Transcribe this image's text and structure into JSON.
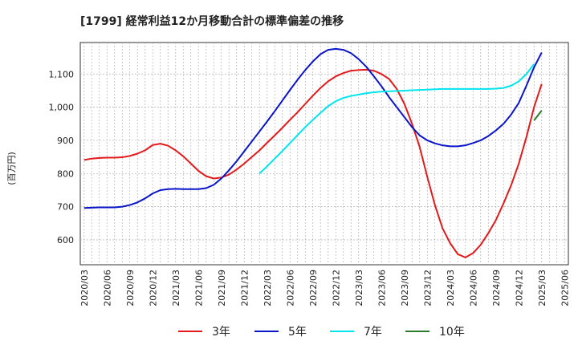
{
  "chart_data": {
    "type": "line",
    "title": "[1799]  経常利益12か月移動合計の標準偏差の推移",
    "ylabel": "(百万円)",
    "xlabel": "",
    "ylim": [
      525,
      1195
    ],
    "yticks": [
      600,
      700,
      800,
      900,
      "1,000",
      "1,100"
    ],
    "ytick_values": [
      600,
      700,
      800,
      900,
      1000,
      1100
    ],
    "x": [
      "2020/03",
      "2020/04",
      "2020/05",
      "2020/06",
      "2020/07",
      "2020/08",
      "2020/09",
      "2020/10",
      "2020/11",
      "2020/12",
      "2021/01",
      "2021/02",
      "2021/03",
      "2021/04",
      "2021/05",
      "2021/06",
      "2021/07",
      "2021/08",
      "2021/09",
      "2021/10",
      "2021/11",
      "2021/12",
      "2022/01",
      "2022/02",
      "2022/03",
      "2022/04",
      "2022/05",
      "2022/06",
      "2022/07",
      "2022/08",
      "2022/09",
      "2022/10",
      "2022/11",
      "2022/12",
      "2023/01",
      "2023/02",
      "2023/03",
      "2023/04",
      "2023/05",
      "2023/06",
      "2023/07",
      "2023/08",
      "2023/09",
      "2023/10",
      "2023/11",
      "2023/12",
      "2024/01",
      "2024/02",
      "2024/03",
      "2024/04",
      "2024/05",
      "2024/06",
      "2024/07",
      "2024/08",
      "2024/09",
      "2024/10",
      "2024/11",
      "2024/12",
      "2025/01",
      "2025/02",
      "2025/03",
      "2025/04",
      "2025/05",
      "2025/06"
    ],
    "xticks": [
      "2020/03",
      "2020/06",
      "2020/09",
      "2020/12",
      "2021/03",
      "2021/06",
      "2021/09",
      "2021/12",
      "2022/03",
      "2022/06",
      "2022/09",
      "2022/12",
      "2023/03",
      "2023/06",
      "2023/09",
      "2023/12",
      "2024/03",
      "2024/06",
      "2024/09",
      "2024/12",
      "2025/03",
      "2025/06"
    ],
    "grid": true,
    "legend": "bottom",
    "series": [
      {
        "name": "3年",
        "color": "#e31a1c",
        "values": [
          841,
          845,
          847,
          848,
          848,
          849,
          853,
          860,
          870,
          886,
          890,
          884,
          870,
          852,
          830,
          808,
          792,
          785,
          788,
          797,
          812,
          830,
          850,
          870,
          893,
          915,
          938,
          962,
          985,
          1010,
          1035,
          1058,
          1078,
          1093,
          1103,
          1110,
          1112,
          1113,
          1110,
          1100,
          1085,
          1055,
          1010,
          950,
          880,
          790,
          705,
          635,
          590,
          557,
          547,
          560,
          585,
          620,
          660,
          710,
          765,
          830,
          910,
          1000,
          1070,
          null,
          null,
          null
        ]
      },
      {
        "name": "5年",
        "color": "#0a14c8",
        "values": [
          696,
          697,
          698,
          698,
          698,
          700,
          705,
          713,
          725,
          740,
          750,
          753,
          754,
          753,
          753,
          753,
          756,
          766,
          785,
          810,
          837,
          867,
          897,
          927,
          957,
          988,
          1020,
          1052,
          1083,
          1112,
          1138,
          1160,
          1173,
          1176,
          1173,
          1163,
          1145,
          1122,
          1093,
          1063,
          1030,
          1000,
          970,
          940,
          915,
          900,
          891,
          885,
          882,
          882,
          885,
          892,
          900,
          913,
          930,
          950,
          978,
          1013,
          1065,
          1120,
          1165,
          null,
          null,
          null
        ]
      },
      {
        "name": "7年",
        "color": "#00e5ee",
        "values": [
          null,
          null,
          null,
          null,
          null,
          null,
          null,
          null,
          null,
          null,
          null,
          null,
          null,
          null,
          null,
          null,
          null,
          null,
          null,
          null,
          null,
          null,
          null,
          800,
          822,
          845,
          868,
          892,
          916,
          940,
          962,
          983,
          1003,
          1018,
          1028,
          1034,
          1038,
          1042,
          1045,
          1047,
          1048,
          1049,
          1050,
          1051,
          1052,
          1053,
          1054,
          1055,
          1055,
          1055,
          1055,
          1055,
          1055,
          1055,
          1056,
          1058,
          1065,
          1078,
          1100,
          1130,
          null,
          null,
          null,
          null
        ]
      },
      {
        "name": "10年",
        "color": "#2e7d2e",
        "values": [
          null,
          null,
          null,
          null,
          null,
          null,
          null,
          null,
          null,
          null,
          null,
          null,
          null,
          null,
          null,
          null,
          null,
          null,
          null,
          null,
          null,
          null,
          null,
          null,
          null,
          null,
          null,
          null,
          null,
          null,
          null,
          null,
          null,
          null,
          null,
          null,
          null,
          null,
          null,
          null,
          null,
          null,
          null,
          null,
          null,
          null,
          null,
          null,
          null,
          null,
          null,
          null,
          null,
          null,
          null,
          null,
          null,
          null,
          null,
          960,
          990,
          null,
          null,
          null
        ]
      }
    ]
  }
}
